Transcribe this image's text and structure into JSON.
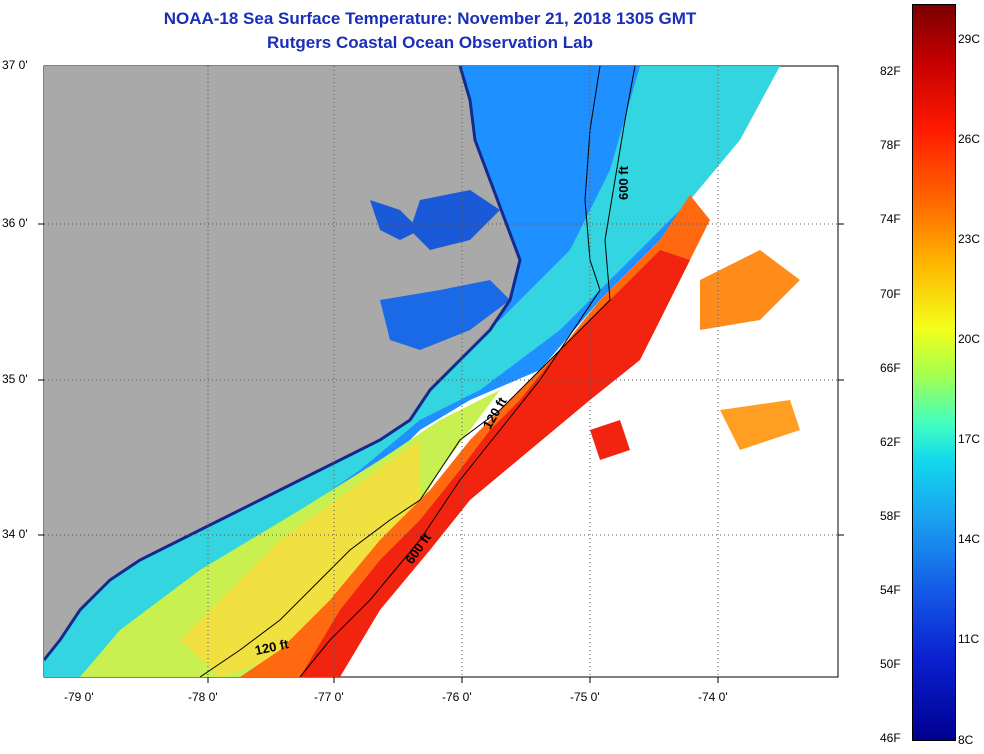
{
  "title": {
    "line1": "NOAA-18 Sea Surface Temperature:  November 21, 2018 1305 GMT",
    "line2": "Rutgers Coastal Ocean Observation Lab"
  },
  "map": {
    "lat_labels": [
      "37 0'",
      "36 0'",
      "35 0'",
      "34 0'"
    ],
    "lon_labels": [
      "-79 0'",
      "-78 0'",
      "-77 0'",
      "-76 0'",
      "-75 0'",
      "-74 0'"
    ],
    "contours": [
      "600 ft",
      "120 ft",
      "600 ft",
      "120 ft"
    ],
    "colors": {
      "land": "#a9a9a9",
      "coast_deep": "#142a8c",
      "cool": "#1e90ff",
      "mid": "#3fd8d0",
      "warm_yellow": "#e6f040",
      "warm_orange": "#ff8c1a",
      "hot": "#f21c10"
    }
  },
  "colorbar": {
    "fahrenheit": [
      "82F",
      "78F",
      "74F",
      "70F",
      "66F",
      "62F",
      "58F",
      "54F",
      "50F",
      "46F"
    ],
    "celsius": [
      "29C",
      "26C",
      "23C",
      "20C",
      "17C",
      "14C",
      "11C",
      "8C"
    ]
  }
}
